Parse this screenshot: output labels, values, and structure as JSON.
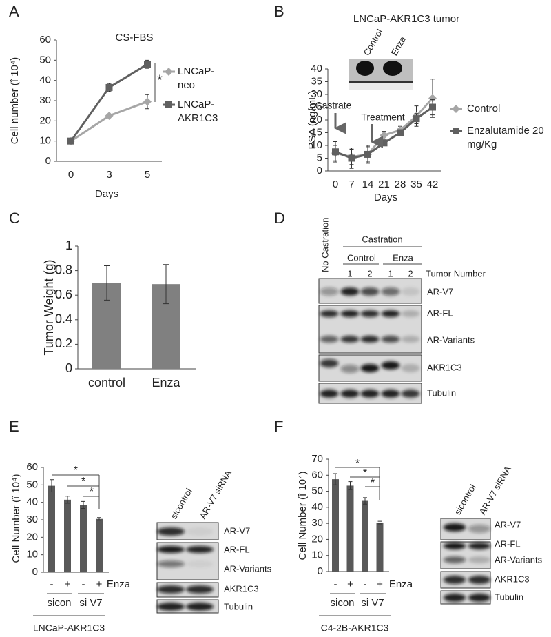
{
  "chart_data": [
    {
      "type": "line",
      "title": "CS-FBS",
      "x_label": "Days",
      "y_label": "Cell number (î 10⁴)",
      "categories": [
        "0",
        "3",
        "5"
      ],
      "series": [
        {
          "name": "LNCaP-neo",
          "color": "#a6a6a6",
          "marker": "diamond",
          "values": [
            10,
            22.5,
            29.5
          ],
          "errors": [
            0.5,
            0.8,
            3.5
          ]
        },
        {
          "name": "LNCaP-AKR1C3",
          "color": "#606060",
          "marker": "square",
          "values": [
            10,
            36.5,
            48
          ],
          "errors": [
            0.5,
            2,
            2
          ]
        }
      ],
      "ylim": [
        0,
        60
      ],
      "yticks": [
        0,
        10,
        20,
        30,
        40,
        50,
        60
      ],
      "annotations": [
        "*"
      ]
    },
    {
      "type": "line",
      "title": "LNCaP-AKR1C3 tumor",
      "x_label": "Days",
      "y_label": "PSA (ng/mL)",
      "categories": [
        "0",
        "7",
        "14",
        "21",
        "28",
        "35",
        "42"
      ],
      "series": [
        {
          "name": "Control",
          "color": "#a6a6a6",
          "marker": "diamond",
          "values": [
            7,
            5.5,
            6.5,
            14,
            16,
            21.5,
            28.5
          ],
          "errors": [
            3,
            3,
            3,
            1.5,
            1.5,
            4,
            7.5
          ]
        },
        {
          "name": "Enzalutamide 20 mg/Kg",
          "color": "#606060",
          "marker": "square",
          "values": [
            7.5,
            5,
            6.5,
            11,
            15,
            20.5,
            25
          ],
          "errors": [
            4,
            4,
            3.5,
            1,
            1,
            2,
            3
          ]
        }
      ],
      "ylim": [
        0,
        40
      ],
      "yticks": [
        0,
        5,
        10,
        15,
        20,
        25,
        30,
        35,
        40
      ],
      "annotations": [
        "Castrate",
        "Treatment"
      ],
      "inset_labels": [
        "Control",
        "Enza"
      ]
    },
    {
      "type": "bar",
      "y_label": "Tumor Weight  (g)",
      "categories": [
        "control",
        "Enza"
      ],
      "values": [
        0.7,
        0.69
      ],
      "errors": [
        0.14,
        0.16
      ],
      "color": "#808080",
      "ylim": [
        0,
        1
      ],
      "yticks": [
        0,
        0.2,
        0.4,
        0.6,
        0.8,
        1
      ]
    },
    {
      "type": "bar",
      "y_label": "Cell Number (î 10⁴)",
      "x_label": "Enza",
      "categories": [
        "-",
        "+",
        "-",
        "+"
      ],
      "values": [
        49.5,
        41.5,
        38.5,
        30.5
      ],
      "errors": [
        3.5,
        2,
        2,
        0.8
      ],
      "color": "#595959",
      "groups": [
        "sicon",
        "si V7"
      ],
      "caption": "LNCaP-AKR1C3",
      "annotations": [
        "*",
        "*",
        "*"
      ],
      "ylim": [
        0,
        60
      ],
      "yticks": [
        0,
        10,
        20,
        30,
        40,
        50,
        60
      ]
    },
    {
      "type": "bar",
      "y_label": "Cell Number (î 10⁴)",
      "x_label": "Enza",
      "categories": [
        "-",
        "+",
        "-",
        "+"
      ],
      "values": [
        57.5,
        53.5,
        44,
        30.5
      ],
      "errors": [
        3.5,
        2.5,
        2,
        0.8
      ],
      "color": "#595959",
      "groups": [
        "sicon",
        "si V7"
      ],
      "caption": "C4-2B-AKR1C3",
      "annotations": [
        "*",
        "*",
        "*"
      ],
      "ylim": [
        0,
        70
      ],
      "yticks": [
        0,
        10,
        20,
        30,
        40,
        50,
        60,
        70
      ]
    }
  ],
  "panel_labels": [
    "A",
    "B",
    "C",
    "D",
    "E",
    "F"
  ],
  "blots": [
    {
      "header": "No Castration",
      "group_title": "Castration",
      "groups": [
        "Control",
        "Enza"
      ],
      "lanes": [
        "1",
        "2",
        "1",
        "2"
      ],
      "lanes_title": "Tumor Number",
      "row_labels": [
        "AR-V7",
        "AR-FL",
        "AR-Variants",
        "AKR1C3",
        "Tubulin"
      ]
    },
    {
      "lanes": [
        "sicontrol",
        "AR-V7 siRNA"
      ],
      "row_labels": [
        "AR-V7",
        "AR-FL",
        "AR-Variants",
        "AKR1C3",
        "Tubulin"
      ]
    },
    {
      "lanes": [
        "sicontrol",
        "AR-V7 siRNA"
      ],
      "row_labels": [
        "AR-V7",
        "AR-FL",
        "AR-Variants",
        "AKR1C3",
        "Tubulin"
      ]
    }
  ]
}
